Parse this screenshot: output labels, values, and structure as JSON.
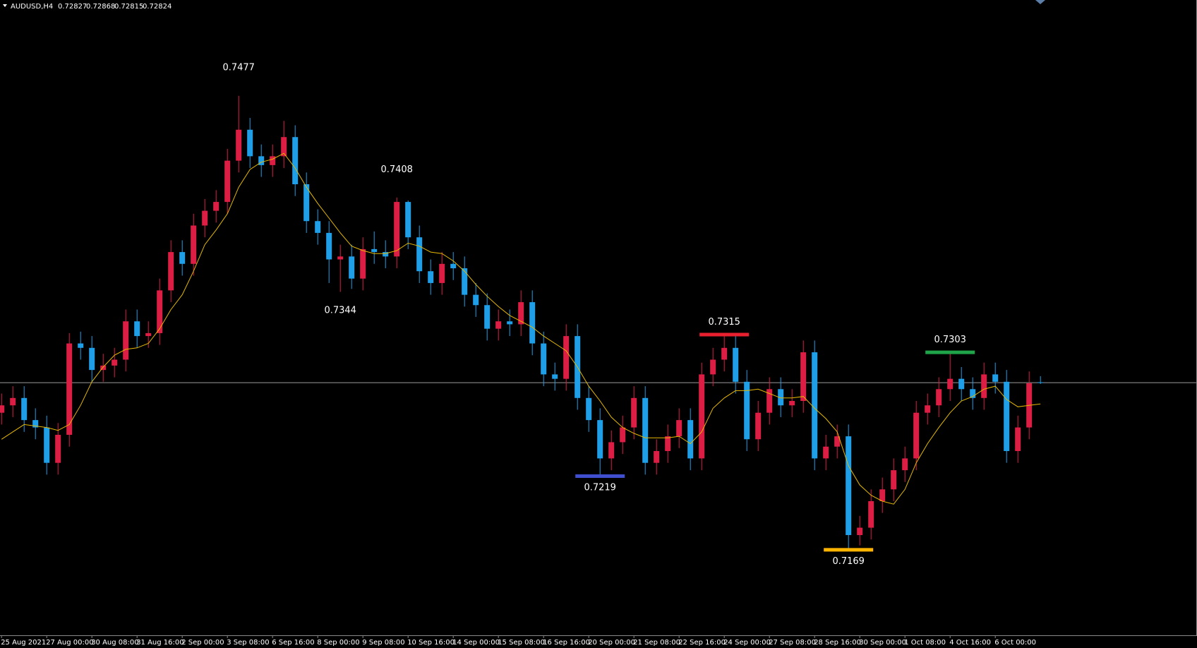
{
  "chart_data": {
    "type": "candlestick",
    "symbol": "AUDUSD,H4",
    "categories": [
      "25 Aug 2021",
      null,
      null,
      null,
      "27 Aug 00:00",
      null,
      null,
      null,
      "30 Aug 08:00",
      null,
      null,
      null,
      "31 Aug 16:00",
      null,
      null,
      null,
      "2 Sep 00:00",
      null,
      null,
      null,
      "3 Sep 08:00",
      null,
      null,
      null,
      "6 Sep 16:00",
      null,
      null,
      null,
      "8 Sep 00:00",
      null,
      null,
      null,
      "9 Sep 08:00",
      null,
      null,
      null,
      "10 Sep 16:00",
      null,
      null,
      null,
      "14 Sep 00:00",
      null,
      null,
      null,
      "15 Sep 08:00",
      null,
      null,
      null,
      "16 Sep 16:00",
      null,
      null,
      null,
      "20 Sep 00:00",
      null,
      null,
      null,
      "21 Sep 08:00",
      null,
      null,
      null,
      "22 Sep 16:00",
      null,
      null,
      null,
      "24 Sep 00:00",
      null,
      null,
      null,
      "27 Sep 08:00",
      null,
      null,
      null,
      "28 Sep 16:00",
      null,
      null,
      null,
      "30 Sep 00:00",
      null,
      null,
      null,
      "1 Oct 08:00",
      null,
      null,
      null,
      "4 Oct 16:00",
      null,
      null,
      null,
      "6 Oct 00:00",
      null,
      null,
      null,
      null
    ],
    "open": [
      0.7262,
      0.7267,
      0.7272,
      0.7257,
      0.7252,
      0.7228,
      0.7247,
      0.7309,
      0.7306,
      0.7291,
      0.7294,
      0.7298,
      0.7324,
      0.7314,
      0.7316,
      0.7345,
      0.7371,
      0.7363,
      0.7389,
      0.7399,
      0.7405,
      0.7433,
      0.7454,
      0.7436,
      0.743,
      0.7436,
      0.7449,
      0.7417,
      0.7392,
      0.7384,
      0.7366,
      0.7368,
      0.7353,
      0.7373,
      0.7371,
      0.7368,
      0.7405,
      0.7381,
      0.7358,
      0.735,
      0.7363,
      0.736,
      0.7342,
      0.7335,
      0.7319,
      0.7324,
      0.7322,
      0.7337,
      0.7309,
      0.7288,
      0.7285,
      0.7314,
      0.7272,
      0.7257,
      0.7231,
      0.7242,
      0.7252,
      0.7272,
      0.7228,
      0.7236,
      0.7246,
      0.7257,
      0.7231,
      0.7288,
      0.7298,
      0.7306,
      0.7283,
      0.7244,
      0.7262,
      0.7278,
      0.7267,
      0.727,
      0.7303,
      0.7231,
      0.7239,
      0.7246,
      0.7179,
      0.7184,
      0.7202,
      0.721,
      0.7223,
      0.7231,
      0.7262,
      0.7267,
      0.7278,
      0.7285,
      0.7278,
      0.7272,
      0.7288,
      0.7283,
      0.7236,
      0.7252,
      0.72827
    ],
    "high": [
      0.7275,
      0.728,
      0.728,
      0.7265,
      0.726,
      0.7255,
      0.7316,
      0.7317,
      0.7314,
      0.7302,
      0.7306,
      0.7332,
      0.7332,
      0.7324,
      0.7353,
      0.7379,
      0.7379,
      0.7397,
      0.7407,
      0.7413,
      0.7441,
      0.7477,
      0.7462,
      0.7444,
      0.7444,
      0.746,
      0.7457,
      0.7425,
      0.74,
      0.7392,
      0.7376,
      0.7376,
      0.7381,
      0.7385,
      0.7379,
      0.7408,
      0.7406,
      0.7389,
      0.7366,
      0.7371,
      0.7371,
      0.7368,
      0.735,
      0.7343,
      0.7332,
      0.7332,
      0.7345,
      0.7345,
      0.7317,
      0.7296,
      0.7322,
      0.7322,
      0.728,
      0.7265,
      0.725,
      0.726,
      0.728,
      0.728,
      0.7244,
      0.7254,
      0.7265,
      0.7265,
      0.7296,
      0.7306,
      0.7315,
      0.7314,
      0.7291,
      0.727,
      0.7286,
      0.7286,
      0.7278,
      0.7311,
      0.7311,
      0.7247,
      0.7254,
      0.7254,
      0.7192,
      0.721,
      0.7218,
      0.7231,
      0.7239,
      0.727,
      0.7275,
      0.7286,
      0.7303,
      0.7293,
      0.7286,
      0.7296,
      0.7296,
      0.7291,
      0.726,
      0.729,
      0.72868
    ],
    "low": [
      0.7254,
      0.7259,
      0.7249,
      0.7244,
      0.722,
      0.722,
      0.7239,
      0.7298,
      0.7283,
      0.7283,
      0.7286,
      0.729,
      0.7306,
      0.7306,
      0.7308,
      0.7337,
      0.7355,
      0.7355,
      0.7381,
      0.7391,
      0.7397,
      0.7425,
      0.7428,
      0.7422,
      0.7422,
      0.7428,
      0.7409,
      0.7384,
      0.7376,
      0.735,
      0.7344,
      0.7346,
      0.7345,
      0.7363,
      0.736,
      0.736,
      0.7373,
      0.735,
      0.7342,
      0.7342,
      0.7352,
      0.7334,
      0.7327,
      0.7311,
      0.7311,
      0.7314,
      0.7314,
      0.7301,
      0.728,
      0.7277,
      0.7277,
      0.7264,
      0.7249,
      0.7219,
      0.7223,
      0.7234,
      0.7244,
      0.722,
      0.722,
      0.7228,
      0.7238,
      0.7223,
      0.7223,
      0.728,
      0.729,
      0.7275,
      0.7236,
      0.7236,
      0.7254,
      0.7259,
      0.7259,
      0.7262,
      0.7223,
      0.7223,
      0.7231,
      0.7169,
      0.7172,
      0.7176,
      0.7194,
      0.7202,
      0.7215,
      0.7223,
      0.7254,
      0.7259,
      0.727,
      0.727,
      0.7264,
      0.7264,
      0.7275,
      0.7228,
      0.7228,
      0.7244,
      0.72815
    ],
    "close": [
      0.7267,
      0.7272,
      0.7257,
      0.7252,
      0.7228,
      0.7247,
      0.7309,
      0.7306,
      0.7291,
      0.7294,
      0.7298,
      0.7324,
      0.7314,
      0.7316,
      0.7345,
      0.7371,
      0.7363,
      0.7389,
      0.7399,
      0.7405,
      0.7433,
      0.7454,
      0.7436,
      0.743,
      0.7436,
      0.7449,
      0.7417,
      0.7392,
      0.7384,
      0.7366,
      0.7368,
      0.7353,
      0.7373,
      0.7371,
      0.7368,
      0.7405,
      0.7381,
      0.7358,
      0.735,
      0.7363,
      0.736,
      0.7342,
      0.7335,
      0.7319,
      0.7324,
      0.7322,
      0.7337,
      0.7309,
      0.7288,
      0.7285,
      0.7314,
      0.7272,
      0.7257,
      0.7231,
      0.7242,
      0.7252,
      0.7272,
      0.7228,
      0.7236,
      0.7246,
      0.7257,
      0.7231,
      0.7288,
      0.7298,
      0.7306,
      0.7283,
      0.7244,
      0.7262,
      0.7278,
      0.7267,
      0.727,
      0.7303,
      0.7231,
      0.7239,
      0.7246,
      0.7179,
      0.7184,
      0.7202,
      0.721,
      0.7223,
      0.7231,
      0.7262,
      0.7267,
      0.7278,
      0.7285,
      0.7278,
      0.7272,
      0.7288,
      0.7283,
      0.7236,
      0.7252,
      0.7282,
      0.72824
    ],
    "up_color": "#dc1e44",
    "down_color": "#1e9fe8",
    "ma": {
      "color": "#e6b800",
      "values": [
        0.7244,
        0.7249,
        0.7254,
        0.7253,
        0.7252,
        0.725,
        0.7254,
        0.7267,
        0.7283,
        0.7293,
        0.7301,
        0.7305,
        0.7306,
        0.7309,
        0.7319,
        0.7332,
        0.7342,
        0.7358,
        0.7376,
        0.7386,
        0.7397,
        0.7415,
        0.7427,
        0.7432,
        0.7434,
        0.7438,
        0.7428,
        0.7415,
        0.7404,
        0.7394,
        0.7384,
        0.7375,
        0.7372,
        0.737,
        0.737,
        0.7372,
        0.7377,
        0.7375,
        0.7371,
        0.737,
        0.7365,
        0.7358,
        0.7349,
        0.7341,
        0.7334,
        0.7328,
        0.7324,
        0.732,
        0.7314,
        0.7309,
        0.7304,
        0.7293,
        0.728,
        0.727,
        0.7259,
        0.7252,
        0.7248,
        0.7245,
        0.7245,
        0.7245,
        0.7246,
        0.7241,
        0.7249,
        0.7265,
        0.7272,
        0.7277,
        0.7277,
        0.7278,
        0.7275,
        0.7272,
        0.7272,
        0.7273,
        0.7265,
        0.7258,
        0.7249,
        0.7226,
        0.7213,
        0.7206,
        0.7202,
        0.72,
        0.721,
        0.7228,
        0.7241,
        0.7252,
        0.7262,
        0.727,
        0.7273,
        0.7278,
        0.728,
        0.7271,
        0.7266,
        0.7267,
        0.7268
      ]
    },
    "ylim": [
      0.7111,
      0.7542
    ],
    "current_line_color": "#9a9a9a",
    "annotations": [
      {
        "value": 0.7477
      },
      {
        "value": 0.7408
      },
      {
        "value": 0.7344
      },
      {
        "value": 0.7315,
        "color": "#e8202f"
      },
      {
        "value": 0.7219,
        "color": "#3f4fd0"
      },
      {
        "value": 0.7169,
        "color": "#ffb400"
      },
      {
        "value": 0.7303,
        "color": "#1fa44a"
      }
    ]
  }
}
